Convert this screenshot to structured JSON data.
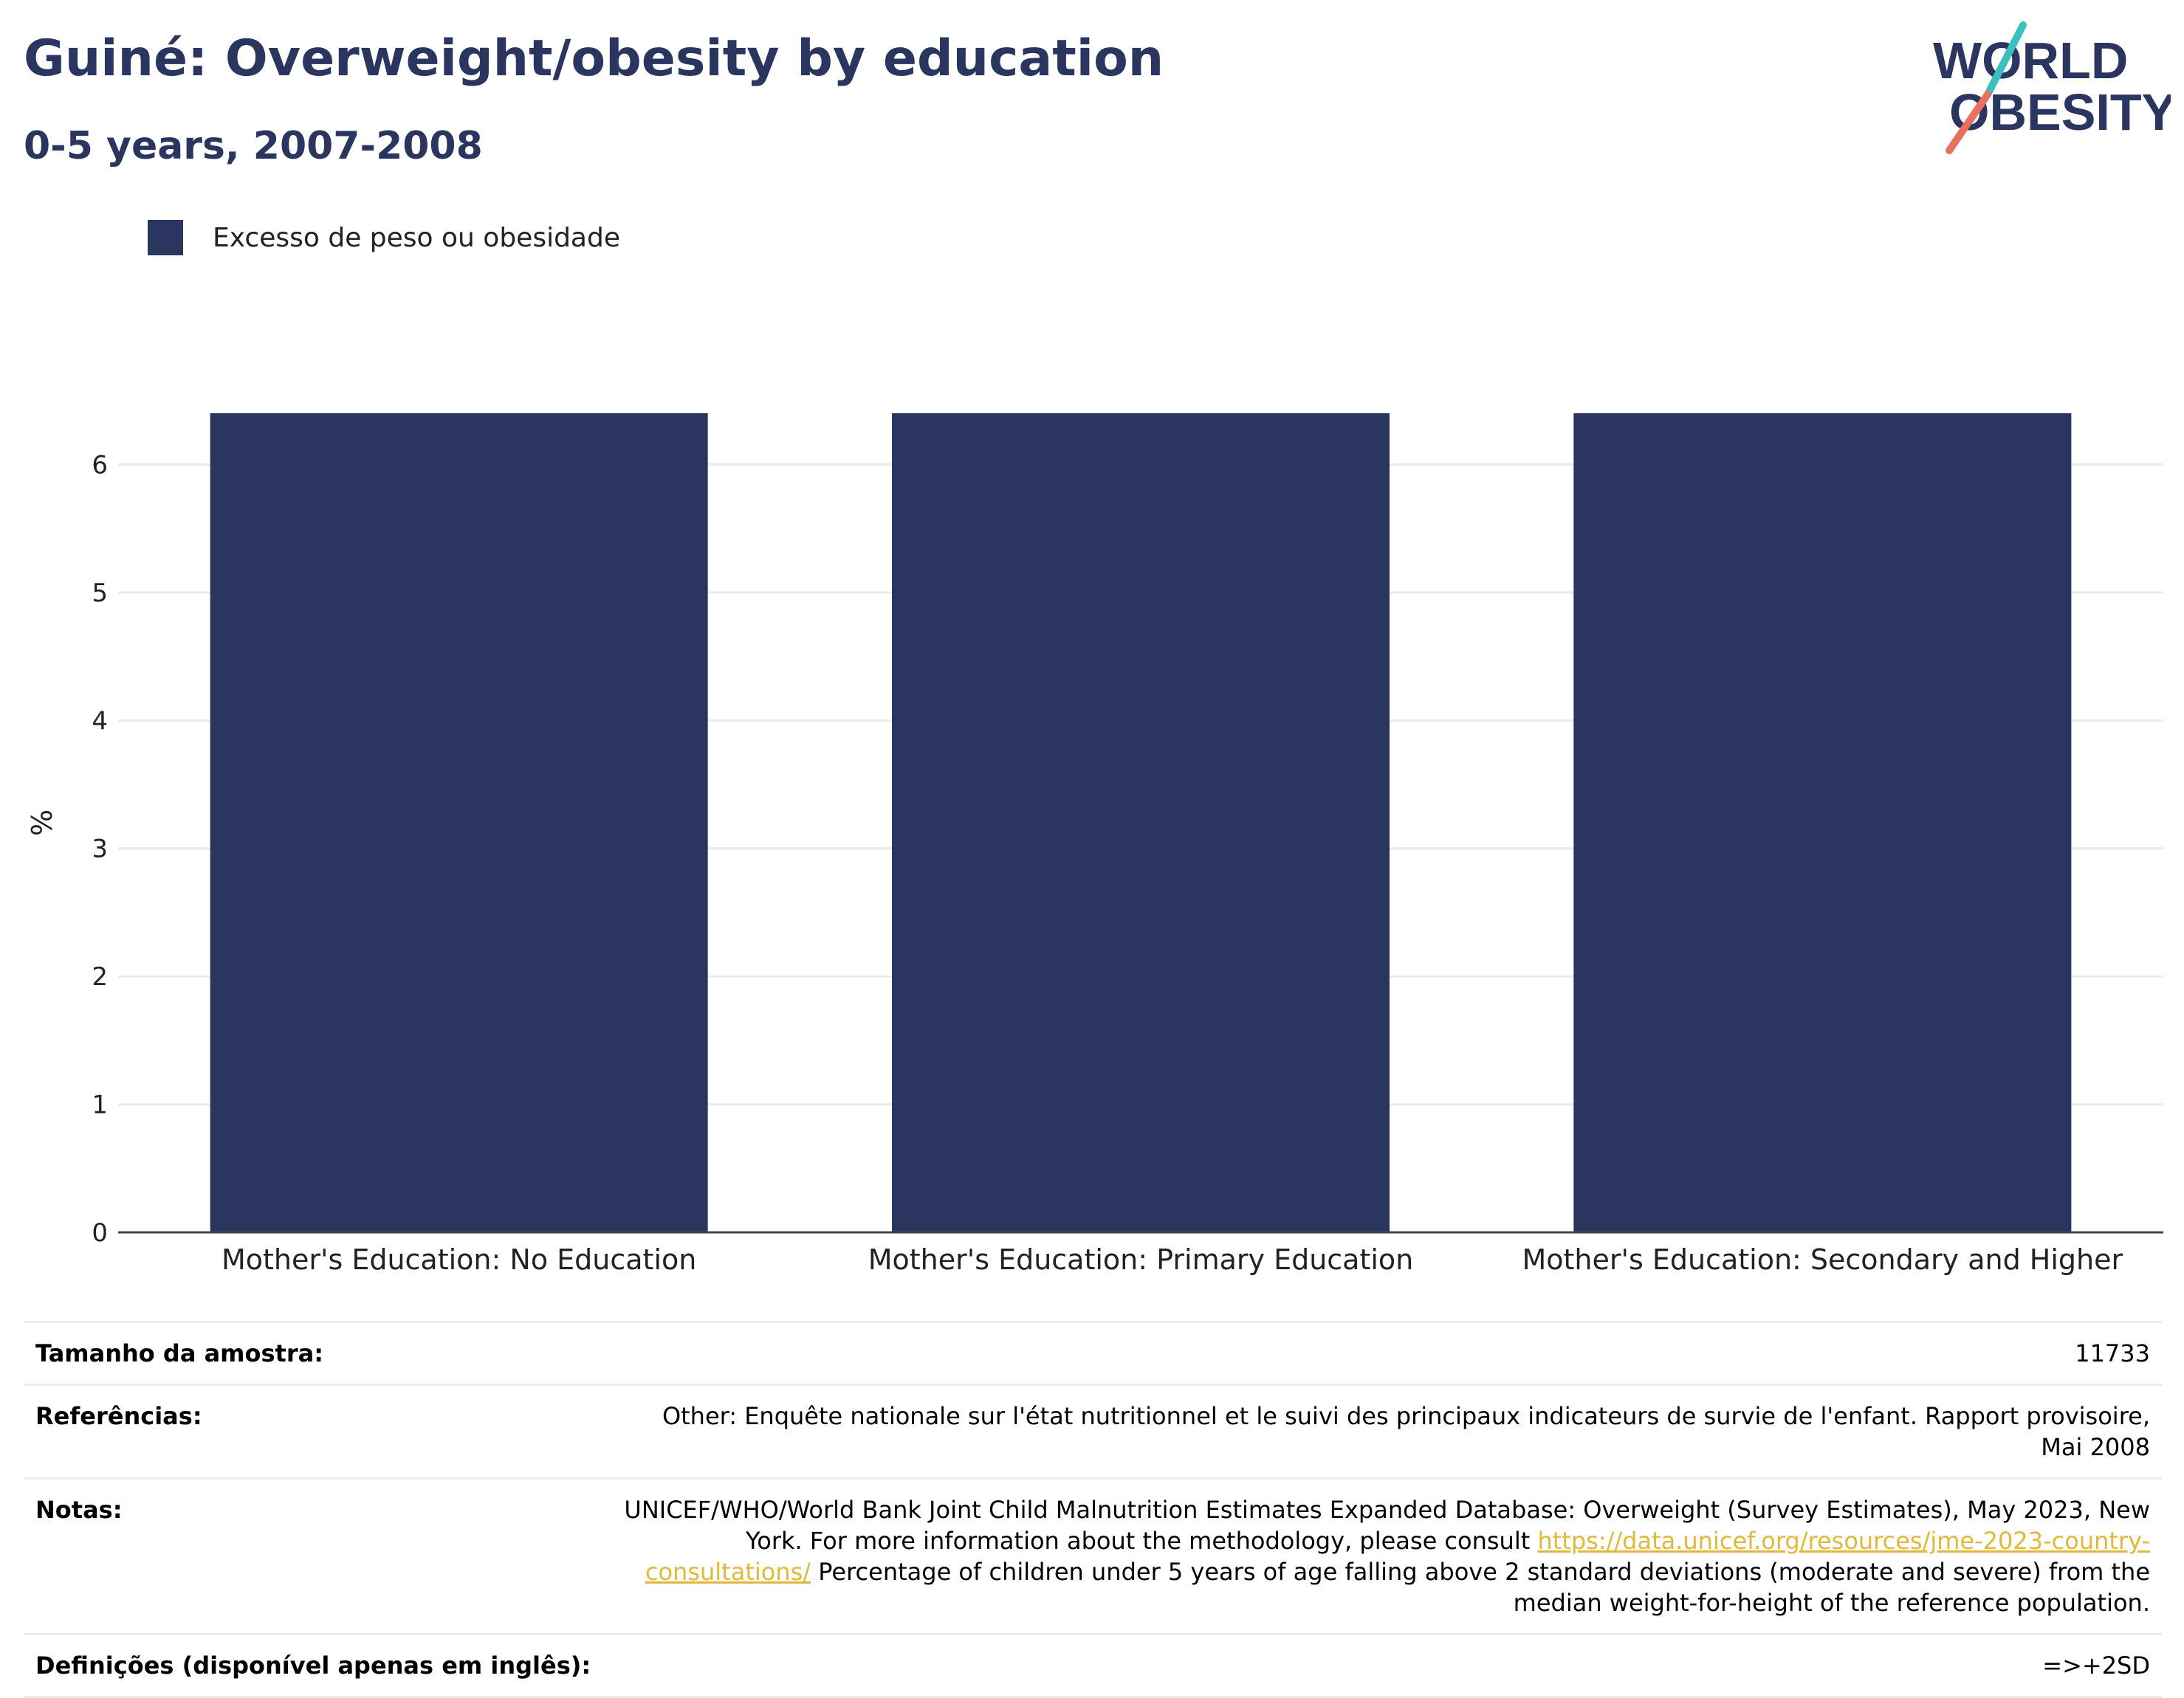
{
  "header": {
    "title": "Guiné: Overweight/obesity by education",
    "subtitle": "0-5 years, 2007-2008"
  },
  "logo": {
    "line1": "WORLD",
    "line2": "OBESITY"
  },
  "colors": {
    "bar": "#2a365f",
    "text": "#2a365f",
    "link": "#e0b93a",
    "logo_teal": "#3cbfbf",
    "logo_coral": "#e8705c"
  },
  "chart_data": {
    "type": "bar",
    "categories": [
      "Mother's Education: No Education",
      "Mother's Education: Primary Education",
      "Mother's Education: Secondary and Higher"
    ],
    "series": [
      {
        "name": "Excesso de peso ou obesidade",
        "values": [
          6.4,
          6.4,
          6.4
        ]
      }
    ],
    "ylabel": "%",
    "ylim": [
      0,
      6.4
    ],
    "yticks": [
      "0",
      "1",
      "2",
      "3",
      "4",
      "5",
      "6"
    ],
    "grid": true,
    "legend": "top-left"
  },
  "info": {
    "sample_label": "Tamanho da amostra:",
    "sample_value": "11733",
    "refs_label": "Referências:",
    "refs_value": "Other: Enquête nationale sur l'état nutritionnel et le suivi des principaux indicateurs de survie de l'enfant. Rapport provisoire, Mai 2008",
    "notes_label": "Notas:",
    "notes_text1": "UNICEF/WHO/World Bank Joint Child Malnutrition Estimates Expanded Database: Overweight (Survey Estimates), May 2023, New York. For more information about the methodology, please consult",
    "notes_link": "https://data.unicef.org/resources/jme-2023-country-consultations/",
    "notes_text2": "Percentage of children under 5 years of age falling above 2 standard deviations (moderate and severe) from the median weight-for-height of the reference population.",
    "defs_label": "Definições (disponível apenas em inglês):",
    "defs_value": "=>+2SD"
  }
}
